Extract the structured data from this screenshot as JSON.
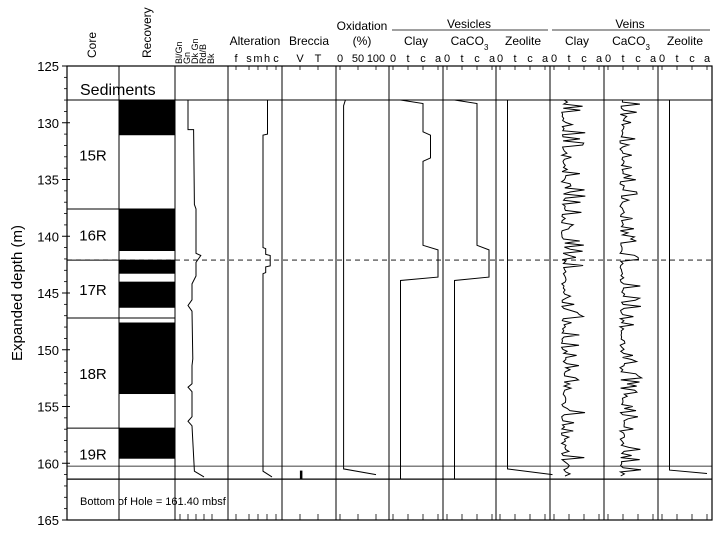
{
  "chart_data": {
    "type": "log",
    "ylabel": "Expanded depth (m)",
    "ylim": [
      125,
      165
    ],
    "yticks": [
      125,
      130,
      135,
      140,
      145,
      150,
      155,
      160,
      165
    ],
    "top_of_basement": 128,
    "bottom_of_log": 161.4,
    "marker_depth": 142.1,
    "sediments_label": "Sediments",
    "bottom_label": "Bottom of Hole = 161.40 mbsf",
    "group_headers": {
      "vesicles": "Vesicles",
      "veins": "Veins"
    },
    "columns": [
      {
        "id": "core",
        "label": "Core"
      },
      {
        "id": "recovery",
        "label": "Recovery"
      },
      {
        "id": "color",
        "labels": [
          "Bl/Gn",
          "Gn",
          "Dk Gn",
          "Rd/B",
          "Bk"
        ]
      },
      {
        "id": "alteration",
        "label": "Alteration",
        "ticks": [
          "f",
          "s",
          "m",
          "h",
          "c"
        ]
      },
      {
        "id": "breccia",
        "label": "Breccia",
        "ticks": [
          "V",
          "T"
        ]
      },
      {
        "id": "oxidation",
        "label": "Oxidation\n(%)",
        "ticks": [
          "0",
          "50",
          "100"
        ]
      },
      {
        "id": "ves_clay",
        "label": "Clay",
        "ticks": [
          "0",
          "t",
          "c",
          "a"
        ]
      },
      {
        "id": "ves_caco3",
        "label": "CaCO3",
        "ticks": [
          "0",
          "t",
          "c",
          "a"
        ]
      },
      {
        "id": "ves_zeolite",
        "label": "Zeolite",
        "ticks": [
          "0",
          "t",
          "c",
          "a"
        ]
      },
      {
        "id": "vein_clay",
        "label": "Clay",
        "ticks": [
          "0",
          "t",
          "c",
          "a"
        ]
      },
      {
        "id": "vein_caco3",
        "label": "CaCO3",
        "ticks": [
          "0",
          "t",
          "c",
          "a"
        ]
      },
      {
        "id": "vein_zeolite",
        "label": "Zeolite",
        "ticks": [
          "0",
          "t",
          "c",
          "a"
        ]
      }
    ],
    "cores": [
      {
        "name": "15R",
        "top": 128,
        "bottom": 137.6
      },
      {
        "name": "16R",
        "top": 137.6,
        "bottom": 142.1
      },
      {
        "name": "17R",
        "top": 142.1,
        "bottom": 147.2
      },
      {
        "name": "18R",
        "top": 147.2,
        "bottom": 156.9
      },
      {
        "name": "19R",
        "top": 156.9,
        "bottom": 161.4
      }
    ],
    "recovered_intervals": [
      [
        128,
        131.1
      ],
      [
        137.6,
        141.3
      ],
      [
        142.1,
        143.3
      ],
      [
        144.0,
        146.3
      ],
      [
        147.6,
        153.9
      ],
      [
        156.9,
        159.6
      ]
    ],
    "color_log": [
      [
        128,
        1.0
      ],
      [
        130.6,
        1.0
      ],
      [
        130.6,
        1.7
      ],
      [
        137.2,
        1.8
      ],
      [
        137.6,
        2.0
      ],
      [
        141.5,
        2.0
      ],
      [
        141.7,
        2.6
      ],
      [
        142.3,
        2.0
      ],
      [
        143.5,
        2.0
      ],
      [
        144.2,
        1.5
      ],
      [
        145.6,
        1.5
      ],
      [
        146.1,
        1.0
      ],
      [
        146.6,
        1.5
      ],
      [
        150.8,
        1.6
      ],
      [
        151.4,
        1.5
      ],
      [
        153.0,
        1.5
      ],
      [
        153.3,
        1.0
      ],
      [
        153.7,
        1.5
      ],
      [
        155.9,
        1.5
      ],
      [
        156.3,
        1.0
      ],
      [
        156.7,
        1.5
      ],
      [
        160.7,
        1.8
      ],
      [
        161.2,
        3.0
      ]
    ],
    "alteration_log": [
      [
        128,
        3.5
      ],
      [
        131,
        3.5
      ],
      [
        131.1,
        3.0
      ],
      [
        141.0,
        3.0
      ],
      [
        141.1,
        3.3
      ],
      [
        141.6,
        3.3
      ],
      [
        141.7,
        3.8
      ],
      [
        142.6,
        3.8
      ],
      [
        142.7,
        3.3
      ],
      [
        143.2,
        3.3
      ],
      [
        143.3,
        3.0
      ],
      [
        160.7,
        3.0
      ],
      [
        161.2,
        4.0
      ]
    ],
    "breccia_marks": [
      [
        161.0,
        0.3
      ]
    ],
    "oxidation_log": [
      [
        128,
        15
      ],
      [
        128.5,
        10
      ],
      [
        160.5,
        10
      ],
      [
        161.0,
        100
      ]
    ],
    "ves_clay_log": [
      [
        128,
        0.5
      ],
      [
        128.3,
        2.0
      ],
      [
        130.8,
        2.0
      ],
      [
        131.1,
        2.5
      ],
      [
        133.1,
        2.5
      ],
      [
        133.4,
        2.0
      ],
      [
        140.8,
        2.0
      ],
      [
        141.2,
        3.0
      ],
      [
        143.6,
        3.0
      ],
      [
        143.9,
        0.5
      ],
      [
        161.4,
        0.5
      ]
    ],
    "ves_caco3_log": [
      [
        128,
        0.5
      ],
      [
        128.3,
        2.0
      ],
      [
        140.8,
        2.0
      ],
      [
        141.2,
        2.8
      ],
      [
        143.6,
        2.8
      ],
      [
        143.9,
        0.5
      ],
      [
        161.4,
        0.5
      ]
    ],
    "ves_zeolite_log": [
      [
        128,
        0.5
      ],
      [
        160.5,
        0.5
      ],
      [
        161.0,
        3.5
      ]
    ],
    "vein_zeolite_log": [
      [
        128,
        0.5
      ],
      [
        160.6,
        0.5
      ],
      [
        160.9,
        3.0
      ]
    ]
  }
}
